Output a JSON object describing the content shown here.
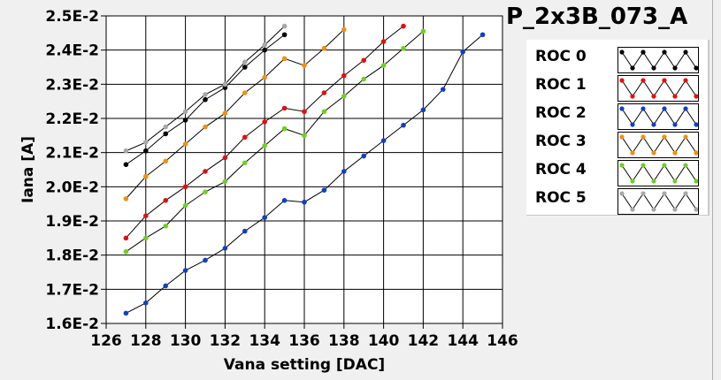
{
  "chart_data": {
    "type": "line",
    "title": "P_2x3B_073_A",
    "xlabel": "Vana setting [DAC]",
    "ylabel": "Iana [A]",
    "xlim": [
      126,
      146
    ],
    "ylim": [
      0.016,
      0.025
    ],
    "x_ticks": [
      "126",
      "128",
      "130",
      "132",
      "134",
      "136",
      "138",
      "140",
      "142",
      "144",
      "146"
    ],
    "y_ticks": [
      "1.6E-2",
      "1.7E-2",
      "1.8E-2",
      "1.9E-2",
      "2.0E-2",
      "2.1E-2",
      "2.2E-2",
      "2.3E-2",
      "2.4E-2",
      "2.5E-2"
    ],
    "grid": true,
    "legend_placement": "right",
    "series": [
      {
        "name": "ROC 0",
        "color": "#000000",
        "x": [
          127,
          128,
          129,
          130,
          131,
          132,
          133,
          134,
          135
        ],
        "y": [
          0.02065,
          0.02105,
          0.02155,
          0.02195,
          0.02255,
          0.0229,
          0.0235,
          0.024,
          0.02445
        ]
      },
      {
        "name": "ROC 1",
        "color": "#e01010",
        "x": [
          127,
          128,
          129,
          130,
          131,
          132,
          133,
          134,
          135,
          136,
          137,
          138,
          139,
          140,
          141
        ],
        "y": [
          0.0185,
          0.01915,
          0.0196,
          0.02,
          0.02045,
          0.02085,
          0.02145,
          0.0219,
          0.0223,
          0.0222,
          0.02275,
          0.02325,
          0.0237,
          0.02425,
          0.0247
        ]
      },
      {
        "name": "ROC 2",
        "color": "#1040c0",
        "x": [
          127,
          128,
          129,
          130,
          131,
          132,
          133,
          134,
          135,
          136,
          137,
          138,
          139,
          140,
          141,
          142,
          143,
          144,
          145
        ],
        "y": [
          0.0163,
          0.0166,
          0.0171,
          0.01755,
          0.01785,
          0.0182,
          0.0187,
          0.0191,
          0.0196,
          0.01955,
          0.0199,
          0.02045,
          0.0209,
          0.02135,
          0.0218,
          0.02225,
          0.02285,
          0.02395,
          0.02445
        ]
      },
      {
        "name": "ROC 3",
        "color": "#f09010",
        "x": [
          127,
          128,
          129,
          130,
          131,
          132,
          133,
          134,
          135,
          136,
          137,
          138
        ],
        "y": [
          0.01965,
          0.0203,
          0.02075,
          0.02125,
          0.02175,
          0.02215,
          0.02275,
          0.0232,
          0.02375,
          0.02355,
          0.02405,
          0.0246
        ]
      },
      {
        "name": "ROC 4",
        "color": "#70d020",
        "x": [
          127,
          128,
          129,
          130,
          131,
          132,
          133,
          134,
          135,
          136,
          137,
          138,
          139,
          140,
          141,
          142
        ],
        "y": [
          0.0181,
          0.0185,
          0.01885,
          0.01945,
          0.01985,
          0.02015,
          0.0207,
          0.0212,
          0.0217,
          0.0215,
          0.0222,
          0.02265,
          0.02315,
          0.02355,
          0.02405,
          0.02455
        ]
      },
      {
        "name": "ROC 5",
        "color": "#a8a8a8",
        "x": [
          127,
          128,
          129,
          130,
          131,
          132,
          133,
          134,
          135
        ],
        "y": [
          0.02105,
          0.0213,
          0.02175,
          0.0222,
          0.0227,
          0.023,
          0.02365,
          0.02415,
          0.0247
        ]
      }
    ]
  }
}
